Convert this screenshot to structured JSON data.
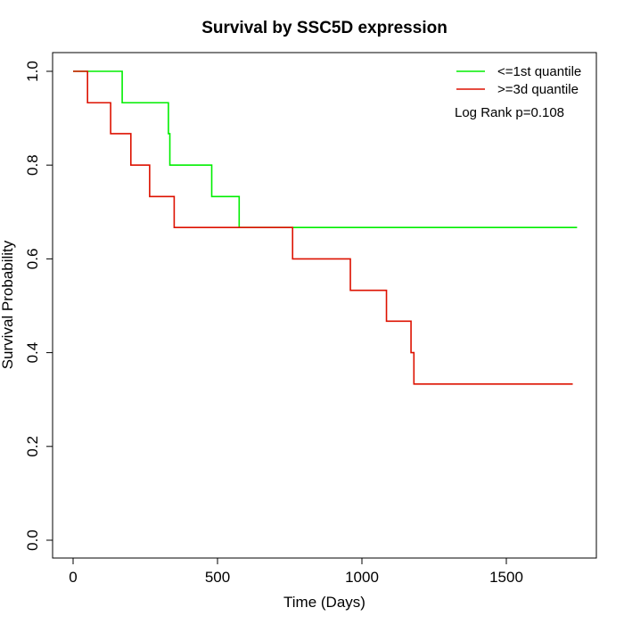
{
  "chart_data": {
    "type": "line",
    "step": true,
    "title": "Survival by SSC5D expression",
    "xlabel": "Time (Days)",
    "ylabel": "Survival Probability",
    "xlim": [
      0,
      1800
    ],
    "ylim": [
      0,
      1.0
    ],
    "x_ticks": [
      0,
      500,
      1000,
      1500
    ],
    "y_ticks": [
      0.0,
      0.2,
      0.4,
      0.6,
      0.8,
      1.0
    ],
    "x_tick_labels": [
      "0",
      "500",
      "1000",
      "1500"
    ],
    "y_tick_labels": [
      "0.0",
      "0.2",
      "0.4",
      "0.6",
      "0.8",
      "1.0"
    ],
    "grid": false,
    "legend_position": "top-right",
    "series": [
      {
        "name": "<=1st quantile",
        "color": "#00ee00",
        "x": [
          0,
          170,
          330,
          335,
          480,
          575,
          1745
        ],
        "y": [
          1.0,
          0.933,
          0.867,
          0.8,
          0.733,
          0.667,
          0.667
        ]
      },
      {
        "name": ">=3d quantile",
        "color": "#dd1100",
        "x": [
          0,
          50,
          130,
          200,
          265,
          350,
          760,
          960,
          1085,
          1170,
          1180,
          1730
        ],
        "y": [
          1.0,
          0.933,
          0.867,
          0.8,
          0.733,
          0.667,
          0.6,
          0.533,
          0.467,
          0.4,
          0.333,
          0.333
        ]
      }
    ],
    "annotations": [
      "Log Rank p=0.108"
    ]
  }
}
